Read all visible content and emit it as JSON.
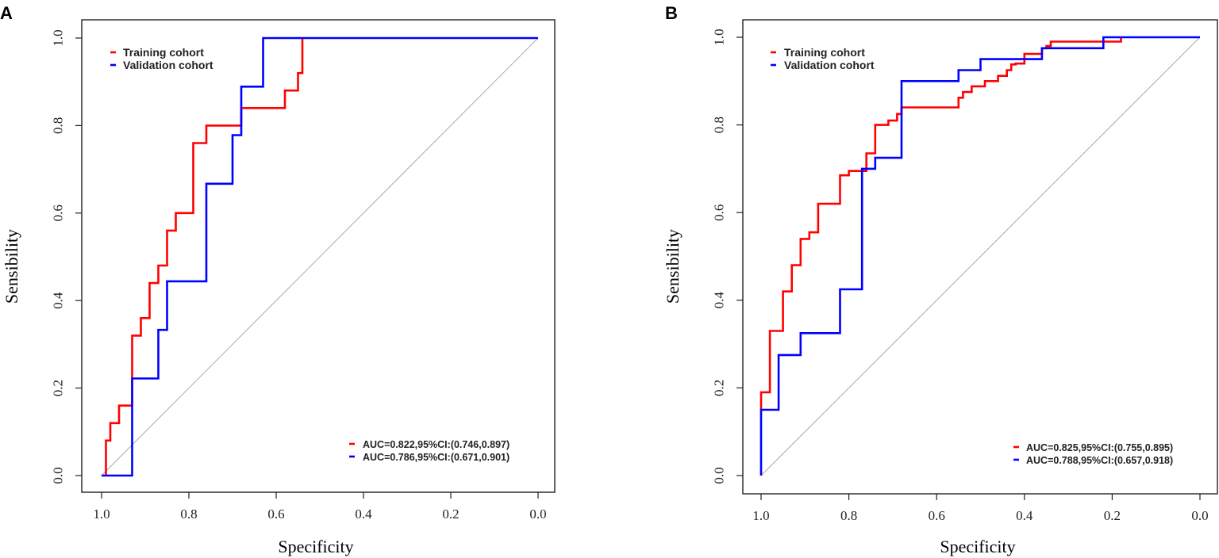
{
  "chart_data": [
    {
      "panel": "A",
      "type": "line",
      "xlabel": "Specificity",
      "ylabel": "Sensibility",
      "xlim": [
        1.0,
        0.0
      ],
      "ylim": [
        0.0,
        1.0
      ],
      "x_ticks": [
        "1.0",
        "0.8",
        "0.6",
        "0.4",
        "0.2",
        "0.0"
      ],
      "y_ticks": [
        "0.0",
        "0.2",
        "0.4",
        "0.6",
        "0.8",
        "1.0"
      ],
      "legend": "top-left",
      "reference_line": "diagonal",
      "series": [
        {
          "name": "Training cohort",
          "color": "#ff0000",
          "auc_label": "AUC=0.822,95%CI:(0.746,0.897)",
          "specificity": [
            0.99,
            0.99,
            0.98,
            0.98,
            0.96,
            0.96,
            0.93,
            0.93,
            0.91,
            0.91,
            0.89,
            0.89,
            0.87,
            0.87,
            0.85,
            0.85,
            0.83,
            0.83,
            0.79,
            0.79,
            0.76,
            0.76,
            0.68,
            0.68,
            0.58,
            0.58,
            0.55,
            0.55,
            0.54,
            0.54
          ],
          "sensitivity": [
            0.0,
            0.08,
            0.08,
            0.12,
            0.12,
            0.16,
            0.16,
            0.32,
            0.32,
            0.36,
            0.36,
            0.44,
            0.44,
            0.48,
            0.48,
            0.56,
            0.56,
            0.6,
            0.6,
            0.76,
            0.76,
            0.8,
            0.8,
            0.84,
            0.84,
            0.88,
            0.88,
            0.92,
            0.92,
            1.0
          ]
        },
        {
          "name": "Validation cohort",
          "color": "#0000ff",
          "auc_label": "AUC=0.786,95%CI:(0.671,0.901)",
          "specificity": [
            1.0,
            0.93,
            0.93,
            0.87,
            0.87,
            0.85,
            0.85,
            0.76,
            0.76,
            0.7,
            0.7,
            0.68,
            0.68,
            0.63,
            0.63,
            0.0
          ],
          "sensitivity": [
            0.0,
            0.0,
            0.222,
            0.222,
            0.333,
            0.333,
            0.444,
            0.444,
            0.667,
            0.667,
            0.778,
            0.778,
            0.889,
            0.889,
            1.0,
            1.0
          ]
        }
      ]
    },
    {
      "panel": "B",
      "type": "line",
      "xlabel": "Specificity",
      "ylabel": "Sensibility",
      "xlim": [
        1.0,
        0.0
      ],
      "ylim": [
        0.0,
        1.0
      ],
      "x_ticks": [
        "1.0",
        "0.8",
        "0.6",
        "0.4",
        "0.2",
        "0.0"
      ],
      "y_ticks": [
        "0.0",
        "0.2",
        "0.4",
        "0.6",
        "0.8",
        "1.0"
      ],
      "legend": "top-left",
      "reference_line": "diagonal",
      "series": [
        {
          "name": "Training cohort",
          "color": "#ff0000",
          "auc_label": "AUC=0.825,95%CI:(0.755,0.895)",
          "specificity": [
            1.0,
            1.0,
            0.98,
            0.98,
            0.95,
            0.95,
            0.93,
            0.93,
            0.91,
            0.91,
            0.89,
            0.89,
            0.87,
            0.87,
            0.82,
            0.82,
            0.8,
            0.8,
            0.76,
            0.76,
            0.74,
            0.74,
            0.71,
            0.71,
            0.69,
            0.69,
            0.68,
            0.68,
            0.55,
            0.55,
            0.54,
            0.54,
            0.52,
            0.52,
            0.49,
            0.49,
            0.46,
            0.46,
            0.44,
            0.44,
            0.43,
            0.43,
            0.42,
            0.42,
            0.4,
            0.4,
            0.36,
            0.36,
            0.35,
            0.35,
            0.34,
            0.34,
            0.25,
            0.25,
            0.18,
            0.18
          ],
          "sensitivity": [
            0.15,
            0.19,
            0.19,
            0.33,
            0.33,
            0.42,
            0.42,
            0.48,
            0.48,
            0.54,
            0.54,
            0.555,
            0.555,
            0.62,
            0.62,
            0.685,
            0.685,
            0.695,
            0.695,
            0.735,
            0.735,
            0.8,
            0.8,
            0.81,
            0.81,
            0.825,
            0.825,
            0.84,
            0.84,
            0.862,
            0.862,
            0.875,
            0.875,
            0.888,
            0.888,
            0.9,
            0.9,
            0.912,
            0.912,
            0.925,
            0.925,
            0.938,
            0.938,
            0.94,
            0.94,
            0.962,
            0.962,
            0.975,
            0.975,
            0.98,
            0.98,
            0.99,
            0.99,
            0.99,
            0.99,
            1.0
          ]
        },
        {
          "name": "Validation cohort",
          "color": "#0000ff",
          "auc_label": "AUC=0.788,95%CI:(0.657,0.918)",
          "specificity": [
            1.0,
            1.0,
            0.96,
            0.96,
            0.91,
            0.91,
            0.82,
            0.82,
            0.77,
            0.77,
            0.74,
            0.74,
            0.68,
            0.68,
            0.55,
            0.55,
            0.5,
            0.5,
            0.36,
            0.36,
            0.22,
            0.22,
            0.0
          ],
          "sensitivity": [
            0.0,
            0.15,
            0.15,
            0.275,
            0.275,
            0.325,
            0.325,
            0.425,
            0.425,
            0.7,
            0.7,
            0.725,
            0.725,
            0.9,
            0.9,
            0.925,
            0.925,
            0.95,
            0.95,
            0.975,
            0.975,
            1.0,
            1.0
          ]
        }
      ]
    }
  ]
}
